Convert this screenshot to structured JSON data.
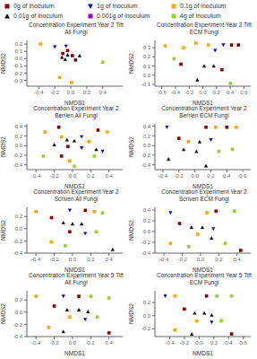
{
  "chart_data": [
    {
      "type": "scatter",
      "title": "Concentration Experiment Year 2 Tift All Fungi",
      "x_label": "NMDS1",
      "y_label": "NMDS2",
      "xlim": [
        -0.55,
        0.65
      ],
      "ylim": [
        -0.38,
        0.25
      ],
      "xticks": [
        -0.4,
        -0.2,
        {
          "value": 0,
          "label": "0.0"
        },
        0.2,
        0.4
      ],
      "yticks": [
        -0.3,
        -0.2,
        -0.1,
        {
          "value": 0,
          "label": "0.0"
        },
        0.1,
        0.2
      ],
      "grid": false,
      "legend": "top",
      "series": [
        {
          "name": "0g of inoculum",
          "color": "#8B0000",
          "marker": "square",
          "x": [
            -0.04,
            -0.1,
            0.02,
            0.06
          ],
          "y": [
            0.11,
            0.07,
            0.04,
            -0.02
          ]
        },
        {
          "name": "1g of inoculum",
          "color": "#0000CD",
          "marker": "triangle-down",
          "x": [
            -0.2,
            -0.06
          ],
          "y": [
            0.16,
            0.17
          ]
        },
        {
          "name": "0.1g of inoculum",
          "color": "#FFA500",
          "marker": "square",
          "x": [
            -0.38,
            -0.14,
            0.01
          ],
          "y": [
            0.2,
            -0.26,
            -0.33
          ]
        },
        {
          "name": "0.01g of inoculum",
          "color": "#000000",
          "marker": "triangle-up",
          "x": [
            -0.04,
            -0.11,
            -0.07,
            0.11
          ],
          "y": [
            0.05,
            0.02,
            -0.01,
            0.04
          ]
        },
        {
          "name": "0.001g of inoculum",
          "color": "#9400D3",
          "marker": "square",
          "x": [],
          "y": []
        },
        {
          "name": "4g of inoculum",
          "color": "#9ACD32",
          "marker": "square",
          "x": [
            0.4
          ],
          "y": [
            -0.05
          ]
        }
      ]
    },
    {
      "type": "scatter",
      "title": "Concentration Experiment Year 2 Tift ECM Fungi",
      "x_label": "NMDS1",
      "y_label": "NMDS2",
      "xlim": [
        -0.7,
        0.7
      ],
      "ylim": [
        -0.12,
        0.38
      ],
      "xticks": [
        -0.6,
        -0.4,
        -0.2,
        {
          "value": 0,
          "label": "0.0"
        },
        0.2,
        0.4,
        0.6
      ],
      "yticks": [
        -0.1,
        {
          "value": 0,
          "label": "0.0"
        },
        0.1,
        0.2,
        0.3
      ],
      "grid": false,
      "series": [
        {
          "name": "0g of inoculum",
          "color": "#8B0000",
          "marker": "square",
          "x": [
            0.42,
            0.52,
            -0.32,
            0.28
          ],
          "y": [
            0.33,
            0.33,
            0.12,
            0.06
          ]
        },
        {
          "name": "1g of inoculum",
          "color": "#0000CD",
          "marker": "triangle-down",
          "x": [
            0.18,
            0.3
          ],
          "y": [
            0.27,
            0.33
          ]
        },
        {
          "name": "0.1g of inoculum",
          "color": "#FFA500",
          "marker": "square",
          "x": [
            -0.55,
            -0.28,
            -0.1,
            0.08
          ],
          "y": [
            0.32,
            0.3,
            0.35,
            0.33
          ]
        },
        {
          "name": "0.01g of inoculum",
          "color": "#000000",
          "marker": "triangle-up",
          "x": [
            0.02,
            0.16,
            -0.08
          ],
          "y": [
            0.1,
            0.1,
            -0.05
          ]
        },
        {
          "name": "0.001g of inoculum",
          "color": "#9400D3",
          "marker": "square",
          "x": [],
          "y": []
        },
        {
          "name": "4g of inoculum",
          "color": "#9ACD32",
          "marker": "square",
          "x": [
            -0.42,
            0.4
          ],
          "y": [
            0.18,
            -0.09
          ]
        }
      ]
    },
    {
      "type": "scatter",
      "title": "Concentration Experiment Year 2 Berrien All Fungi",
      "x_label": "NMDS1",
      "y_label": "NMDS2",
      "xlim": [
        -0.5,
        0.55
      ],
      "ylim": [
        -0.5,
        0.45
      ],
      "xticks": [
        -0.4,
        -0.2,
        {
          "value": 0,
          "label": "0.0"
        },
        0.2,
        0.4
      ],
      "yticks": [
        -0.4,
        -0.2,
        {
          "value": 0,
          "label": "0.0"
        },
        0.2,
        0.4
      ],
      "grid": false,
      "series": [
        {
          "name": "0g of inoculum",
          "color": "#8B0000",
          "marker": "square",
          "x": [
            -0.15,
            0.28,
            -0.05,
            -0.12
          ],
          "y": [
            0.38,
            0.32,
            -0.02,
            -0.22
          ]
        },
        {
          "name": "1g of inoculum",
          "color": "#0000CD",
          "marker": "triangle-down",
          "x": [
            0.1,
            0.1,
            0.33
          ],
          "y": [
            0.18,
            -0.05,
            -0.12
          ]
        },
        {
          "name": "0.1g of inoculum",
          "color": "#FFA500",
          "marker": "square",
          "x": [
            -0.3,
            0.38,
            -0.12,
            0.18,
            -0.03
          ],
          "y": [
            0.28,
            0.28,
            0.18,
            0.08,
            -0.32
          ]
        },
        {
          "name": "0.01g of inoculum",
          "color": "#000000",
          "marker": "triangle-up",
          "x": [
            -0.06,
            0.02,
            -0.2,
            0.26
          ],
          "y": [
            0.12,
            0.1,
            0.02,
            -0.08
          ]
        },
        {
          "name": "0.001g of inoculum",
          "color": "#9400D3",
          "marker": "square",
          "x": [],
          "y": []
        },
        {
          "name": "4g of inoculum",
          "color": "#9ACD32",
          "marker": "square",
          "x": [
            -0.32,
            0.24,
            0.02
          ],
          "y": [
            -0.22,
            -0.22,
            -0.43
          ]
        }
      ]
    },
    {
      "type": "scatter",
      "title": "Concentration Experiment Year 2 Berrien ECM Fungi",
      "x_label": "NMDS1",
      "y_label": "NMDS2",
      "xlim": [
        -0.5,
        0.7
      ],
      "ylim": [
        -0.5,
        0.45
      ],
      "xticks": [
        -0.4,
        -0.2,
        {
          "value": 0,
          "label": "0.0"
        },
        0.2,
        0.4,
        0.6
      ],
      "yticks": [
        -0.4,
        -0.2,
        {
          "value": 0,
          "label": "0.0"
        },
        0.2,
        0.4
      ],
      "grid": false,
      "series": [
        {
          "name": "0g of inoculum",
          "color": "#8B0000",
          "marker": "square",
          "x": [
            0.14,
            0.4,
            -0.2
          ],
          "y": [
            0.38,
            0.38,
            0.15
          ]
        },
        {
          "name": "1g of inoculum",
          "color": "#0000CD",
          "marker": "triangle-down",
          "x": [
            -0.35,
            0.2
          ],
          "y": [
            0.38,
            0.12
          ]
        },
        {
          "name": "0.1g of inoculum",
          "color": "#FFA500",
          "marker": "square",
          "x": [
            0.26,
            0.52,
            -0.08
          ],
          "y": [
            0.38,
            0.38,
            0.08
          ]
        },
        {
          "name": "0.01g of inoculum",
          "color": "#000000",
          "marker": "triangle-up",
          "x": [
            0.06,
            -0.14,
            0.02,
            -0.33,
            0.14
          ],
          "y": [
            0.08,
            -0.08,
            -0.12,
            -0.28,
            -0.42
          ]
        },
        {
          "name": "0.001g of inoculum",
          "color": "#9400D3",
          "marker": "square",
          "x": [],
          "y": []
        },
        {
          "name": "4g of inoculum",
          "color": "#9ACD32",
          "marker": "square",
          "x": [
            0.3,
            0.47
          ],
          "y": [
            -0.12,
            -0.08
          ]
        }
      ]
    },
    {
      "type": "scatter",
      "title": "Concentration Experiment Year 2 Scriven All Fungi",
      "x_label": "NMDS1",
      "y_label": "NMDS2",
      "xlim": [
        -0.5,
        0.55
      ],
      "ylim": [
        -0.4,
        0.35
      ],
      "xticks": [
        -0.4,
        -0.2,
        {
          "value": 0,
          "label": "0.0"
        },
        0.2,
        0.4
      ],
      "yticks": [
        -0.4,
        -0.2,
        {
          "value": 0,
          "label": "0.0"
        },
        0.2
      ],
      "grid": false,
      "series": [
        {
          "name": "0g of inoculum",
          "color": "#8B0000",
          "marker": "square",
          "x": [
            0.14,
            -0.23,
            -0.03
          ],
          "y": [
            0.3,
            0.18,
            -0.05
          ]
        },
        {
          "name": "1g of inoculum",
          "color": "#0000CD",
          "marker": "triangle-down",
          "x": [
            -0.03,
            0.14
          ],
          "y": [
            0.3,
            -0.08
          ]
        },
        {
          "name": "0.1g of inoculum",
          "color": "#FFA500",
          "marker": "square",
          "x": [
            -0.4,
            0.24,
            -0.23
          ],
          "y": [
            0.28,
            0.28,
            -0.22
          ]
        },
        {
          "name": "0.01g of inoculum",
          "color": "#000000",
          "marker": "triangle-up",
          "x": [
            -0.1,
            0.0,
            0.1,
            0.44
          ],
          "y": [
            0.1,
            0.08,
            0.08,
            -0.34
          ]
        },
        {
          "name": "0.001g of inoculum",
          "color": "#9400D3",
          "marker": "square",
          "x": [],
          "y": []
        },
        {
          "name": "4g of inoculum",
          "color": "#9ACD32",
          "marker": "square",
          "x": [
            0.33,
            0.26,
            -0.08
          ],
          "y": [
            0.26,
            -0.05,
            -0.28
          ]
        }
      ]
    },
    {
      "type": "scatter",
      "title": "Concentration Experiment Year 2 Scriven ECM Fungi",
      "x_label": "NMDS1",
      "y_label": "NMDS2",
      "xlim": [
        -0.5,
        0.55
      ],
      "ylim": [
        -0.4,
        0.45
      ],
      "xticks": [
        -0.4,
        -0.2,
        {
          "value": 0,
          "label": "0.0"
        },
        0.2,
        0.4
      ],
      "yticks": [
        -0.4,
        -0.2,
        {
          "value": 0,
          "label": "0.0"
        },
        0.2,
        0.4
      ],
      "grid": false,
      "series": [
        {
          "name": "0g of inoculum",
          "color": "#8B0000",
          "marker": "square",
          "x": [
            0.17,
            -0.23,
            0.44
          ],
          "y": [
            0.38,
            0.15,
            -0.35
          ]
        },
        {
          "name": "1g of inoculum",
          "color": "#0000CD",
          "marker": "triangle-down",
          "x": [
            -0.33,
            0.14
          ],
          "y": [
            0.35,
            0.05
          ]
        },
        {
          "name": "0.1g of inoculum",
          "color": "#FFA500",
          "marker": "square",
          "x": [
            0.07,
            -0.03,
            -0.33
          ],
          "y": [
            0.35,
            -0.05,
            -0.22
          ]
        },
        {
          "name": "0.01g of inoculum",
          "color": "#000000",
          "marker": "triangle-up",
          "x": [
            -0.1,
            0.02,
            0.12
          ],
          "y": [
            0.08,
            0.08,
            -0.12
          ]
        },
        {
          "name": "0.001g of inoculum",
          "color": "#9400D3",
          "marker": "square",
          "x": [],
          "y": []
        },
        {
          "name": "4g of inoculum",
          "color": "#9ACD32",
          "marker": "square",
          "x": [
            0.37,
            -0.13,
            0.27
          ],
          "y": [
            0.38,
            -0.28,
            -0.22
          ]
        }
      ]
    },
    {
      "type": "scatter",
      "title": "Concentration Experiment Year 5 Tift All Fungi",
      "x_label": "NMDS1",
      "y_label": "NMDS2",
      "xlim": [
        -0.5,
        0.55
      ],
      "ylim": [
        -0.4,
        0.35
      ],
      "xticks": [
        -0.4,
        -0.2,
        {
          "value": 0,
          "label": "0.0"
        },
        0.2,
        0.4
      ],
      "yticks": [
        -0.4,
        -0.2,
        {
          "value": 0,
          "label": "0.0"
        },
        0.2
      ],
      "grid": false,
      "series": [
        {
          "name": "0g of inoculum",
          "color": "#8B0000",
          "marker": "square",
          "x": [
            0.07,
            -0.2,
            0.4
          ],
          "y": [
            0.26,
            0.1,
            -0.34
          ]
        },
        {
          "name": "1g of inoculum",
          "color": "#0000CD",
          "marker": "triangle-down",
          "x": [
            -0.1,
            0.14
          ],
          "y": [
            0.26,
            -0.12
          ]
        },
        {
          "name": "0.1g of inoculum",
          "color": "#FFA500",
          "marker": "square",
          "x": [
            -0.4,
            -0.03,
            -0.26
          ],
          "y": [
            0.26,
            -0.08,
            -0.25
          ]
        },
        {
          "name": "0.01g of inoculum",
          "color": "#000000",
          "marker": "triangle-up",
          "x": [
            -0.06,
            0.07,
            0.17,
            -0.1
          ],
          "y": [
            0.04,
            0.04,
            0.01,
            -0.32
          ]
        },
        {
          "name": "0.001g of inoculum",
          "color": "#9400D3",
          "marker": "square",
          "x": [],
          "y": []
        },
        {
          "name": "4g of inoculum",
          "color": "#9ACD32",
          "marker": "square",
          "x": [
            0.2,
            0.4,
            0.27
          ],
          "y": [
            0.26,
            0.23,
            -0.08
          ]
        }
      ]
    },
    {
      "type": "scatter",
      "title": "Concentration Experiment Year 5 Tift ECM Fungi",
      "x_label": "NMDS1",
      "y_label": "NMDS2",
      "xlim": [
        -0.6,
        0.7
      ],
      "ylim": [
        -0.32,
        0.38
      ],
      "xticks": [
        -0.4,
        -0.2,
        {
          "value": 0,
          "label": "0.0"
        },
        0.2,
        0.4,
        0.6
      ],
      "yticks": [
        -0.2,
        {
          "value": 0,
          "label": "0.0"
        },
        0.2
      ],
      "grid": false,
      "series": [
        {
          "name": "0g of inoculum",
          "color": "#8B0000",
          "marker": "square",
          "x": [
            0.1,
            -0.2,
            0.44
          ],
          "y": [
            0.3,
            0.1,
            -0.28
          ]
        },
        {
          "name": "1g of inoculum",
          "color": "#0000CD",
          "marker": "triangle-down",
          "x": [
            -0.46,
            0.17
          ],
          "y": [
            0.3,
            -0.1
          ]
        },
        {
          "name": "0.1g of inoculum",
          "color": "#FFA500",
          "marker": "square",
          "x": [
            -0.33,
            -0.03,
            -0.33
          ],
          "y": [
            0.3,
            -0.08,
            -0.22
          ]
        },
        {
          "name": "0.01g of inoculum",
          "color": "#000000",
          "marker": "triangle-up",
          "x": [
            -0.06,
            0.07,
            0.17,
            -0.1
          ],
          "y": [
            0.04,
            0.04,
            0.01,
            -0.28
          ]
        },
        {
          "name": "0.001g of inoculum",
          "color": "#9400D3",
          "marker": "square",
          "x": [],
          "y": []
        },
        {
          "name": "4g of inoculum",
          "color": "#9ACD32",
          "marker": "square",
          "x": [
            0.24,
            0.44,
            0.3
          ],
          "y": [
            0.3,
            0.3,
            -0.08
          ]
        }
      ]
    }
  ]
}
